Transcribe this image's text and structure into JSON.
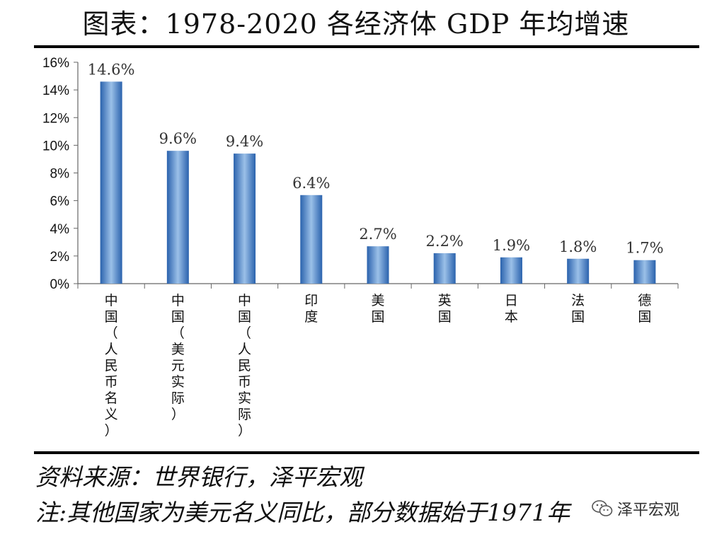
{
  "title": "图表：1978-2020 各经济体 GDP 年均增速",
  "chart_data": {
    "type": "bar",
    "categories": [
      "中国（人民币名义）",
      "中国（美元实际）",
      "中国（人民币实际）",
      "印度",
      "美国",
      "英国",
      "日本",
      "法国",
      "德国"
    ],
    "values": [
      14.6,
      9.6,
      9.4,
      6.4,
      2.7,
      2.2,
      1.9,
      1.8,
      1.7
    ],
    "data_labels": [
      "14.6%",
      "9.6%",
      "9.4%",
      "6.4%",
      "2.7%",
      "2.2%",
      "1.9%",
      "1.8%",
      "1.7%"
    ],
    "y_ticks": [
      "0%",
      "2%",
      "4%",
      "6%",
      "8%",
      "10%",
      "12%",
      "14%",
      "16%"
    ],
    "ylim": [
      0,
      16
    ],
    "unit": "%",
    "grid": false,
    "legend": "none",
    "bar_color": "#3b78c2"
  },
  "notes": {
    "source": "资料来源：世界银行，泽平宏观",
    "note": "注:其他国家为美元名义同比，部分数据始于1971年"
  },
  "watermark": {
    "icon": "wechat-icon",
    "text": "泽平宏观"
  }
}
